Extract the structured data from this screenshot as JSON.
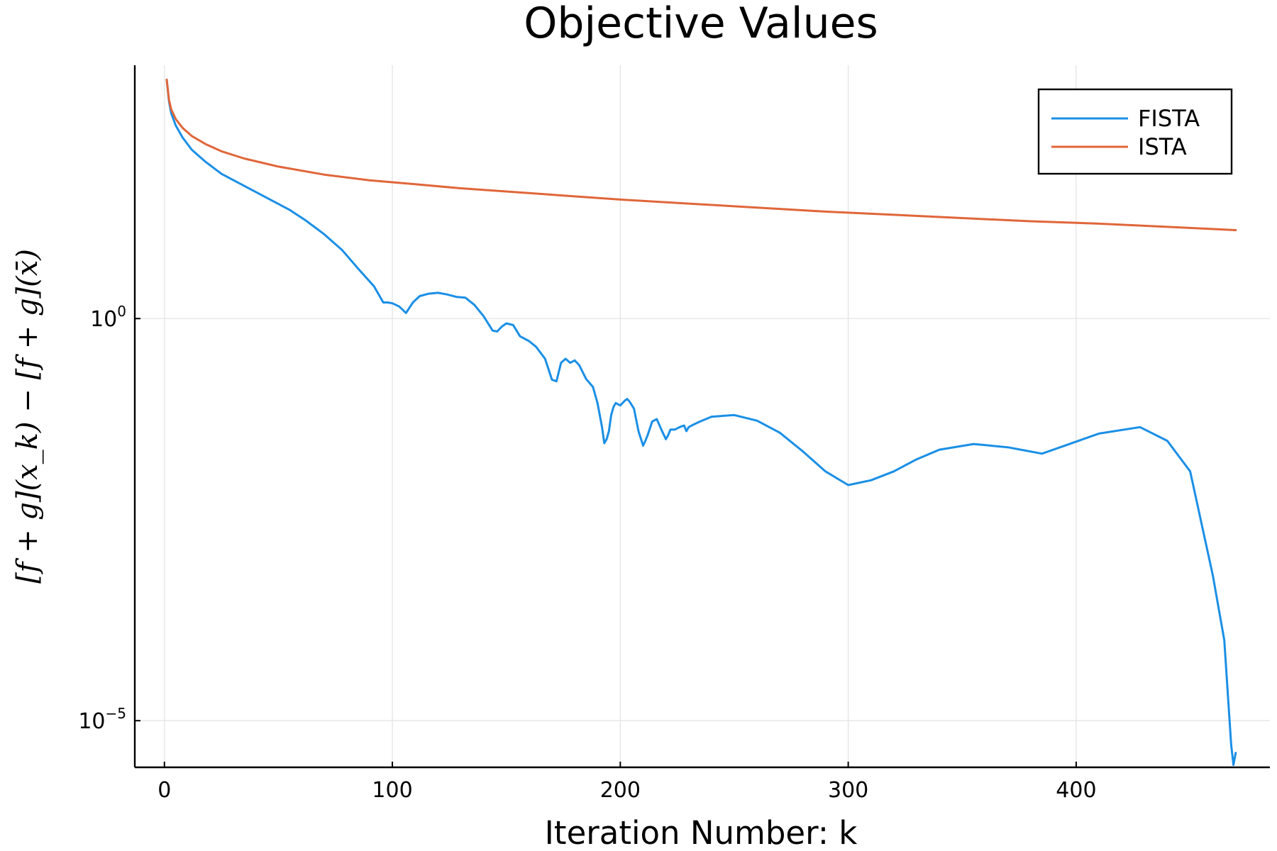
{
  "chart_data": {
    "type": "line",
    "title": "Objective Values",
    "xlabel": "Iteration Number: k",
    "ylabel": "[f + g](x_k) − [f + g](x̄)",
    "xlim": [
      -13,
      485
    ],
    "ylog": true,
    "ylim_log10": [
      -5.58,
      3.15
    ],
    "x_ticks": [
      0,
      100,
      200,
      300,
      400
    ],
    "y_ticks": [
      {
        "value": 1,
        "base": "10",
        "exp": "0"
      },
      {
        "value": 1e-05,
        "base": "10",
        "exp": "−5"
      }
    ],
    "grid": true,
    "legend_position": "top-right",
    "series": [
      {
        "name": "FISTA",
        "color": "#1a8fe6",
        "x": [
          1,
          2,
          3,
          5,
          8,
          12,
          18,
          25,
          35,
          45,
          55,
          62,
          70,
          78,
          85,
          92,
          96,
          98,
          100,
          103,
          106,
          109,
          112,
          116,
          120,
          124,
          128,
          132,
          136,
          140,
          144,
          146,
          148,
          150,
          153,
          156,
          160,
          163,
          167,
          170,
          172,
          174,
          176,
          178,
          180,
          182,
          185,
          188,
          190,
          192,
          193,
          194,
          195,
          196,
          197,
          198,
          200,
          202,
          203,
          204,
          206,
          208,
          210,
          211,
          212,
          214,
          216,
          218,
          220,
          221,
          222,
          224,
          226,
          228,
          229,
          230,
          232,
          235,
          240,
          250,
          260,
          270,
          280,
          290,
          300,
          310,
          320,
          330,
          340,
          355,
          370,
          385,
          395,
          410,
          428,
          440,
          450,
          460,
          465,
          468,
          469,
          470
        ],
        "y": [
          2.97,
          2.7,
          2.55,
          2.4,
          2.25,
          2.1,
          1.95,
          1.8,
          1.65,
          1.5,
          1.35,
          1.22,
          1.05,
          0.85,
          0.62,
          0.4,
          0.2,
          0.2,
          0.19,
          0.15,
          0.07,
          0.2,
          0.28,
          0.31,
          0.32,
          0.3,
          0.27,
          0.26,
          0.17,
          0.03,
          -0.15,
          -0.16,
          -0.1,
          -0.06,
          -0.08,
          -0.22,
          -0.28,
          -0.35,
          -0.5,
          -0.76,
          -0.78,
          -0.55,
          -0.5,
          -0.55,
          -0.52,
          -0.58,
          -0.75,
          -0.85,
          -1.05,
          -1.35,
          -1.55,
          -1.5,
          -1.4,
          -1.2,
          -1.1,
          -1.05,
          -1.08,
          -1.02,
          -1.0,
          -1.03,
          -1.12,
          -1.4,
          -1.58,
          -1.52,
          -1.45,
          -1.28,
          -1.25,
          -1.38,
          -1.5,
          -1.45,
          -1.38,
          -1.38,
          -1.35,
          -1.33,
          -1.4,
          -1.35,
          -1.32,
          -1.28,
          -1.22,
          -1.2,
          -1.27,
          -1.42,
          -1.65,
          -1.9,
          -2.07,
          -2.01,
          -1.9,
          -1.75,
          -1.63,
          -1.56,
          -1.6,
          -1.68,
          -1.58,
          -1.43,
          -1.35,
          -1.52,
          -1.9,
          -3.2,
          -4.0,
          -5.3,
          -5.55,
          -5.4
        ]
      },
      {
        "name": "ISTA",
        "color": "#e0663a",
        "x": [
          1,
          2,
          3,
          5,
          8,
          12,
          18,
          25,
          35,
          50,
          70,
          90,
          110,
          130,
          150,
          175,
          200,
          230,
          260,
          290,
          320,
          350,
          380,
          410,
          440,
          470
        ],
        "y": [
          2.97,
          2.72,
          2.6,
          2.48,
          2.37,
          2.27,
          2.17,
          2.08,
          1.99,
          1.89,
          1.79,
          1.72,
          1.67,
          1.62,
          1.58,
          1.53,
          1.48,
          1.43,
          1.38,
          1.33,
          1.29,
          1.25,
          1.21,
          1.18,
          1.14,
          1.1
        ]
      }
    ]
  }
}
